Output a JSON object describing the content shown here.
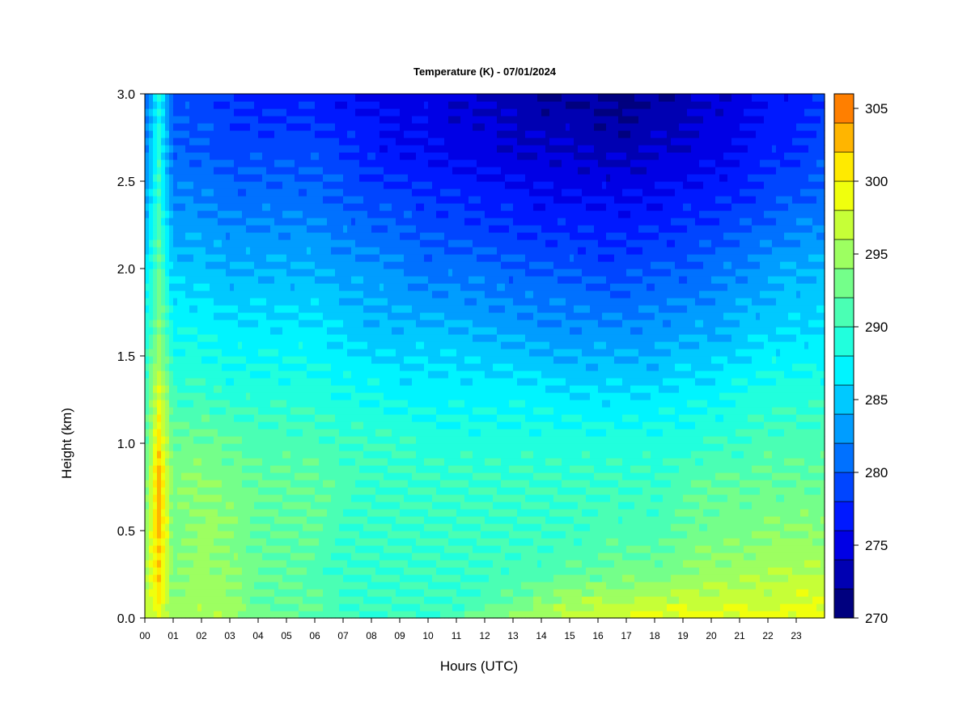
{
  "chart_data": {
    "type": "heatmap",
    "title": "Temperature (K) - 07/01/2024",
    "xlabel": "Hours (UTC)",
    "ylabel": "Height (km)",
    "xlim": [
      0,
      24
    ],
    "ylim": [
      0,
      3.0
    ],
    "x_ticks": [
      "00",
      "01",
      "02",
      "03",
      "04",
      "05",
      "06",
      "07",
      "08",
      "09",
      "10",
      "11",
      "12",
      "13",
      "14",
      "15",
      "16",
      "17",
      "18",
      "19",
      "20",
      "21",
      "22",
      "23"
    ],
    "y_ticks": [
      "0.0",
      "0.5",
      "1.0",
      "1.5",
      "2.0",
      "2.5",
      "3.0"
    ],
    "colorbar": {
      "range": [
        270,
        306
      ],
      "step": 2,
      "tick_values": [
        270,
        275,
        280,
        285,
        290,
        295,
        300,
        305
      ],
      "tick_labels": [
        "270",
        "275",
        "280",
        "285",
        "290",
        "295",
        "300",
        "305"
      ],
      "colors": [
        "#00007f",
        "#0000b2",
        "#0000e5",
        "#0019ff",
        "#0045ff",
        "#0071ff",
        "#009dff",
        "#00c9ff",
        "#00f4ff",
        "#21ffdd",
        "#4affb4",
        "#74ff8a",
        "#9dff61",
        "#c6ff37",
        "#f0ff0d",
        "#ffea00",
        "#ffb500",
        "#ff7f00",
        "#ff4a00",
        "#ff1400",
        "#e50000",
        "#b20000",
        "#7f0000"
      ]
    },
    "grid": false,
    "legend": "colorbar-right",
    "hours": [
      0,
      0.5,
      1,
      2,
      3,
      4,
      5,
      6,
      7,
      8,
      9,
      10,
      11,
      12,
      13,
      14,
      15,
      16,
      17,
      18,
      19,
      20,
      21,
      22,
      23,
      24
    ],
    "profiles": {
      "heights_km": [
        0,
        0.1,
        0.25,
        0.5,
        0.8,
        1.0,
        1.3,
        1.6,
        2.0,
        2.4,
        2.7,
        3.0
      ],
      "temperature_K": [
        [
          296,
          296,
          295,
          294,
          292,
          291,
          290,
          288,
          286,
          283,
          281,
          280
        ],
        [
          297,
          301,
          302,
          303,
          303,
          301,
          298,
          294,
          292,
          290,
          289,
          288
        ],
        [
          295,
          294,
          293,
          293,
          293,
          292,
          290,
          288,
          285,
          282,
          280,
          279
        ],
        [
          296,
          295,
          295,
          295,
          294,
          293,
          290,
          288,
          285,
          282,
          280,
          279
        ],
        [
          295,
          295,
          294,
          294,
          293,
          292,
          289,
          287,
          284,
          281,
          279,
          278
        ],
        [
          293,
          292,
          292,
          292,
          292,
          291,
          289,
          287,
          284,
          281,
          279,
          277
        ],
        [
          292,
          292,
          292,
          292,
          292,
          291,
          289,
          287,
          284,
          281,
          279,
          277
        ],
        [
          292,
          292,
          291,
          292,
          292,
          291,
          289,
          287,
          284,
          281,
          279,
          277
        ],
        [
          291,
          290,
          290,
          290,
          291,
          290,
          288,
          286,
          283,
          280,
          278,
          276
        ],
        [
          290,
          290,
          290,
          290,
          290,
          290,
          288,
          285,
          283,
          279,
          277,
          276
        ],
        [
          290,
          290,
          290,
          290,
          290,
          290,
          287,
          285,
          282,
          279,
          276,
          275
        ],
        [
          290,
          290,
          290,
          290,
          290,
          289,
          287,
          285,
          281,
          278,
          276,
          275
        ],
        [
          291,
          290,
          290,
          290,
          290,
          289,
          287,
          285,
          281,
          278,
          275,
          274
        ],
        [
          293,
          291,
          290,
          290,
          290,
          289,
          287,
          284,
          281,
          277,
          275,
          274
        ],
        [
          295,
          292,
          291,
          290,
          290,
          289,
          287,
          284,
          280,
          277,
          274,
          273
        ],
        [
          296,
          294,
          291,
          290,
          290,
          289,
          287,
          283,
          280,
          276,
          274,
          272
        ],
        [
          297,
          295,
          292,
          290,
          290,
          289,
          286,
          283,
          280,
          276,
          274,
          272
        ],
        [
          298,
          296,
          292,
          291,
          290,
          289,
          286,
          283,
          279,
          276,
          273,
          272
        ],
        [
          298,
          296,
          293,
          291,
          290,
          289,
          286,
          283,
          279,
          276,
          273,
          271
        ],
        [
          299,
          296,
          293,
          291,
          290,
          289,
          286,
          283,
          280,
          276,
          274,
          272
        ],
        [
          299,
          297,
          294,
          292,
          291,
          289,
          287,
          284,
          280,
          277,
          274,
          273
        ],
        [
          299,
          297,
          295,
          293,
          292,
          290,
          287,
          284,
          281,
          277,
          275,
          274
        ],
        [
          299,
          297,
          295,
          293,
          292,
          290,
          288,
          285,
          282,
          278,
          276,
          275
        ],
        [
          299,
          297,
          296,
          294,
          292,
          291,
          289,
          286,
          283,
          279,
          277,
          276
        ],
        [
          299,
          298,
          296,
          294,
          292,
          291,
          289,
          286,
          284,
          280,
          278,
          277
        ],
        [
          299,
          298,
          296,
          294,
          292,
          291,
          289,
          287,
          284,
          281,
          279,
          278
        ]
      ]
    }
  }
}
